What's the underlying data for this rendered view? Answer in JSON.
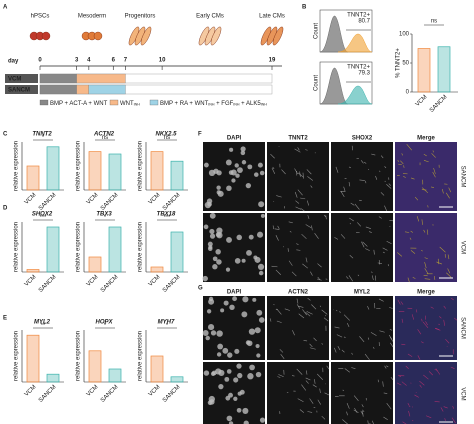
{
  "figure": {
    "panel_labels": [
      "A",
      "B",
      "C",
      "D",
      "E",
      "F",
      "G"
    ],
    "timeline": {
      "stages": [
        "hPSCs",
        "Mesoderm",
        "Progenitors",
        "Early CMs",
        "Late CMs"
      ],
      "day_label": "day",
      "days": [
        0,
        3,
        4,
        6,
        7,
        10,
        19
      ],
      "rows": [
        "VCM",
        "SANCM"
      ],
      "legend": [
        [
          {
            "text": "BMP + ACT-A + WNT"
          }
        ],
        [
          {
            "text": "WNT"
          },
          {
            "sub": "INH"
          }
        ],
        [
          {
            "text": "BMP + RA + WNT"
          },
          {
            "sub": "INH"
          },
          {
            "text": " + FGF"
          },
          {
            "sub": "INH"
          },
          {
            "text": " + ALK5"
          },
          {
            "sub": "INH"
          }
        ]
      ]
    },
    "flow": {
      "y_label": "Count",
      "plots": [
        {
          "label": "TNNT2+",
          "value": 80.7
        },
        {
          "label": "TNNT2+",
          "value": 79.3
        }
      ]
    },
    "tnnt2_pct": {
      "type": "bar",
      "y_label": "% TNNT2+",
      "categories": [
        "VCM",
        "SANCM"
      ],
      "values": [
        75,
        78
      ],
      "ylim": [
        0,
        100
      ],
      "yticks": [
        0,
        50,
        100
      ],
      "significance": "ns"
    },
    "genes": {
      "y_label": "relative expression",
      "categories": [
        "VCM",
        "SANCM"
      ],
      "colors": [
        "#f0883e",
        "#3bb3ad"
      ],
      "ylim": [
        0,
        1
      ],
      "charts": [
        {
          "title": "TNNT2",
          "values": [
            0.5,
            0.9
          ],
          "significance": "*"
        },
        {
          "title": "ACTN2",
          "values": [
            0.8,
            0.75
          ],
          "significance": "ns"
        },
        {
          "title": "NKX2.5",
          "values": [
            0.8,
            0.6
          ],
          "significance": "ns"
        },
        {
          "title": "SHOX2",
          "values": [
            0.05,
            0.9
          ],
          "significance": "***"
        },
        {
          "title": "TBX3",
          "values": [
            0.3,
            0.9
          ],
          "significance": "*"
        },
        {
          "title": "TBX18",
          "values": [
            0.1,
            0.8
          ],
          "significance": "***"
        },
        {
          "title": "MYL2",
          "values": [
            0.9,
            0.15
          ],
          "significance": "**"
        },
        {
          "title": "HOPX",
          "values": [
            0.6,
            0.25
          ],
          "significance": "*"
        },
        {
          "title": "MYH7",
          "values": [
            0.5,
            0.1
          ],
          "significance": "*"
        }
      ]
    },
    "imaging": [
      {
        "headers": [
          "DAPI",
          "TNNT2",
          "SHOX2",
          "Merge"
        ],
        "header_colors": [
          "#3a5bd9",
          "#f0a030",
          "#e0409a",
          "#222222"
        ],
        "rows": [
          "SANCM",
          "VCM"
        ]
      },
      {
        "headers": [
          "DAPI",
          "ACTN2",
          "MYL2",
          "Merge"
        ],
        "header_colors": [
          "#3a5bd9",
          "#f0a030",
          "#e0409a",
          "#222222"
        ],
        "rows": [
          "SANCM",
          "VCM"
        ]
      }
    ]
  }
}
